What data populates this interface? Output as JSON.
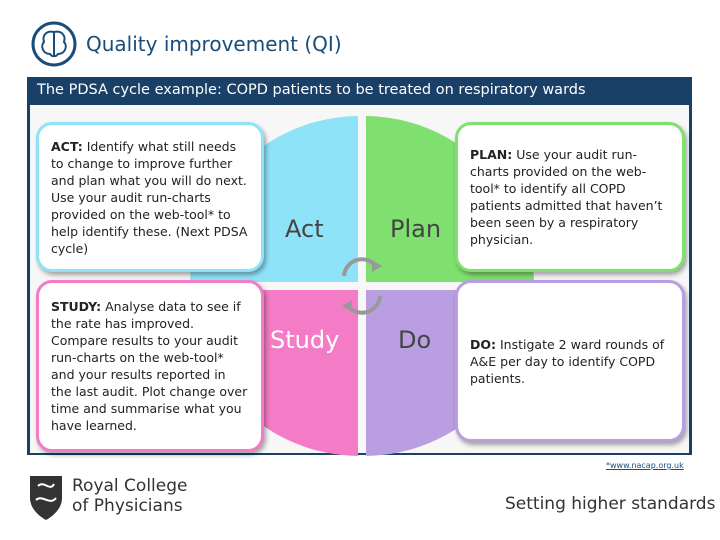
{
  "header": {
    "title": "Quality improvement (QI)"
  },
  "banner": "The PDSA cycle example: COPD patients to be treated on respiratory wards",
  "boxes": {
    "act": {
      "label": "ACT:",
      "text": "Identify what still needs to change to improve further and plan what you will do next. Use your audit run-charts provided on the web-tool* to help identify these. (Next PDSA cycle)"
    },
    "study": {
      "label": "STUDY:",
      "text": "Analyse data to see if the rate has improved. Compare results to your audit run-charts on the web-tool* and your results reported in the last audit. Plot change over time and summarise what you have learned."
    },
    "plan": {
      "label": "PLAN:",
      "text": "Use your audit run-charts provided on the web-tool* to identify all COPD patients admitted that haven’t been seen by a respiratory physician."
    },
    "do": {
      "label": "DO:",
      "text": "Instigate 2 ward rounds of A&E per day to identify COPD patients."
    }
  },
  "quadrants": {
    "act": "Act",
    "plan": "Plan",
    "study": "Study",
    "do": "Do"
  },
  "footnote": "*www.nacap.org.uk",
  "footer": {
    "logo_line1": "Royal College",
    "logo_line2": "of Physicians",
    "tagline": "Setting higher standards"
  }
}
